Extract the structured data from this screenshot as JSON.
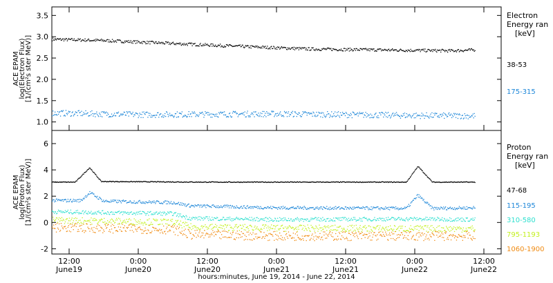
{
  "chart_data": {
    "type": "scatter",
    "xlabel": "hours:minutes, June 19, 2014 - June 22, 2014",
    "x_range": [
      "2014-06-19 09:00",
      "2014-06-22 15:00"
    ],
    "x_ticks": [
      {
        "t": "2014-06-19 12:00",
        "top": "12:00",
        "bottom": "June19"
      },
      {
        "t": "2014-06-20 00:00",
        "top": "0:00",
        "bottom": "June20"
      },
      {
        "t": "2014-06-20 12:00",
        "top": "12:00",
        "bottom": "June20"
      },
      {
        "t": "2014-06-21 00:00",
        "top": "0:00",
        "bottom": "June21"
      },
      {
        "t": "2014-06-21 12:00",
        "top": "12:00",
        "bottom": "June21"
      },
      {
        "t": "2014-06-22 00:00",
        "top": "0:00",
        "bottom": "June22"
      },
      {
        "t": "2014-06-22 12:00",
        "top": "12:00",
        "bottom": "June22"
      }
    ],
    "panels": [
      {
        "id": "electron",
        "ylabel": [
          "ACE EPAM",
          "log(Electron Flux)",
          "[1/(cm²s ster MeV)]"
        ],
        "ylim": [
          0.8,
          3.7
        ],
        "yticks": [
          "1.0",
          "1.5",
          "2.0",
          "2.5",
          "3.0",
          "3.5"
        ],
        "legend_title": [
          "Electron",
          "Energy ran",
          "[keV]"
        ],
        "series": [
          {
            "name": "38-53",
            "color": "#000000",
            "x": [
              "2014-06-19 09:00",
              "2014-06-19 18:00",
              "2014-06-20 06:00",
              "2014-06-20 18:00",
              "2014-06-21 06:00",
              "2014-06-21 18:00",
              "2014-06-22 06:00",
              "2014-06-22 10:30"
            ],
            "y": [
              2.95,
              2.92,
              2.85,
              2.78,
              2.72,
              2.7,
              2.68,
              2.7
            ]
          },
          {
            "name": "175-315",
            "color": "#1c86d8",
            "x": [
              "2014-06-19 09:00",
              "2014-06-20 00:00",
              "2014-06-21 00:00",
              "2014-06-22 00:00",
              "2014-06-22 10:30"
            ],
            "y": [
              1.22,
              1.18,
              1.2,
              1.16,
              1.15
            ]
          }
        ]
      },
      {
        "id": "proton",
        "ylabel": [
          "ACE EPAM",
          "log(Proton Flux)",
          "[1/(cm²s ster MeV)]"
        ],
        "ylim": [
          -2.4,
          7.0
        ],
        "yticks": [
          "-2",
          "0",
          "2",
          "4",
          "6"
        ],
        "legend_title": [
          "Proton",
          "Energy ran",
          "[keV]"
        ],
        "series": [
          {
            "name": "47-68",
            "color": "#000000",
            "x": [
              "2014-06-19 09:00",
              "2014-06-19 13:00",
              "2014-06-19 15:30",
              "2014-06-19 17:30",
              "2014-06-20 12:00",
              "2014-06-21 12:00",
              "2014-06-21 22:30",
              "2014-06-22 00:30",
              "2014-06-22 03:00",
              "2014-06-22 10:30"
            ],
            "y": [
              3.1,
              3.1,
              4.2,
              3.15,
              3.1,
              3.1,
              3.1,
              4.3,
              3.1,
              3.1
            ]
          },
          {
            "name": "115-195",
            "color": "#1c86d8",
            "x": [
              "2014-06-19 09:00",
              "2014-06-19 14:00",
              "2014-06-19 15:30",
              "2014-06-19 18:00",
              "2014-06-20 06:00",
              "2014-06-20 09:00",
              "2014-06-21 00:00",
              "2014-06-21 22:30",
              "2014-06-22 00:30",
              "2014-06-22 03:00",
              "2014-06-22 10:30"
            ],
            "y": [
              1.7,
              1.7,
              2.3,
              1.65,
              1.55,
              1.3,
              1.15,
              1.1,
              2.1,
              1.1,
              1.15
            ]
          },
          {
            "name": "310-580",
            "color": "#2fe0cf",
            "x": [
              "2014-06-19 09:00",
              "2014-06-20 06:00",
              "2014-06-20 09:00",
              "2014-06-21 00:00",
              "2014-06-22 00:30",
              "2014-06-22 10:30"
            ],
            "y": [
              0.85,
              0.7,
              0.35,
              0.25,
              0.3,
              0.25
            ]
          },
          {
            "name": "795-1193",
            "color": "#c2f01c",
            "x": [
              "2014-06-19 09:00",
              "2014-06-20 06:00",
              "2014-06-20 09:00",
              "2014-06-21 00:00",
              "2014-06-22 10:30"
            ],
            "y": [
              0.2,
              0.05,
              -0.3,
              -0.4,
              -0.45
            ]
          },
          {
            "name": "1060-1900",
            "color": "#f08a10",
            "x": [
              "2014-06-19 09:00",
              "2014-06-20 06:00",
              "2014-06-20 09:00",
              "2014-06-21 00:00",
              "2014-06-22 10:30"
            ],
            "y": [
              -0.35,
              -0.5,
              -0.9,
              -1.0,
              -1.0
            ]
          }
        ]
      }
    ]
  }
}
